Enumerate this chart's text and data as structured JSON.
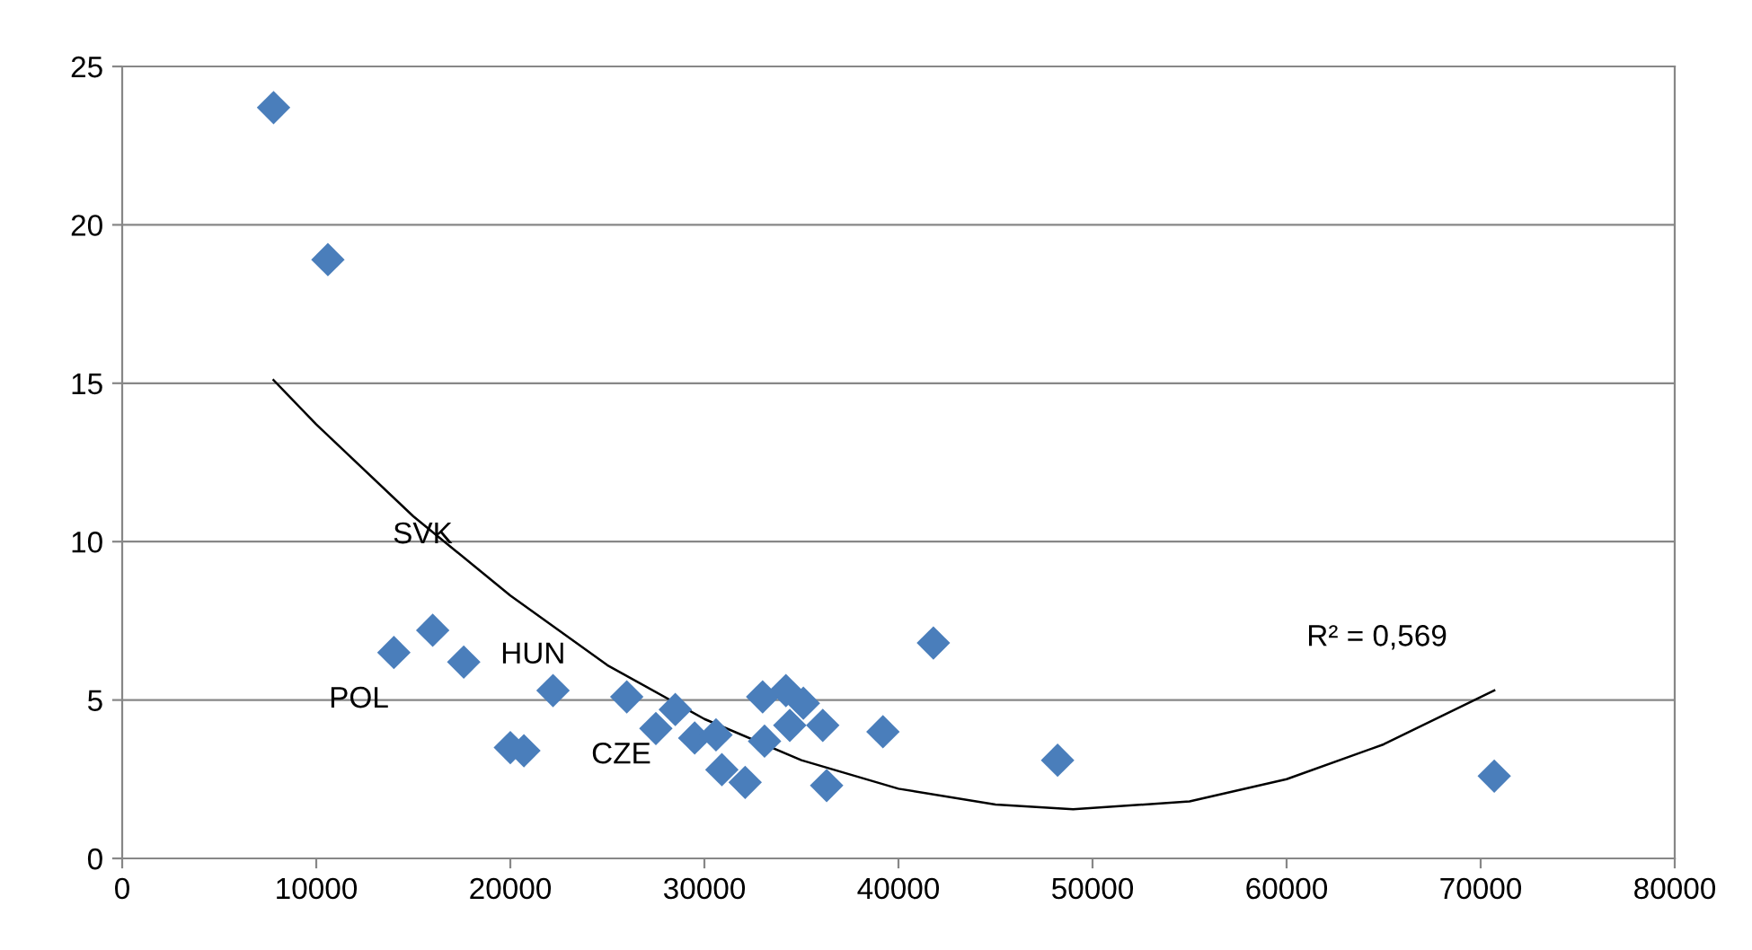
{
  "chart_data": {
    "type": "scatter",
    "grid": "y",
    "legend": false,
    "xlim": [
      0,
      80000
    ],
    "xticks": [
      0,
      10000,
      20000,
      30000,
      40000,
      50000,
      60000,
      70000,
      80000
    ],
    "ylim": [
      0,
      25
    ],
    "yticks": [
      0,
      5,
      10,
      15,
      20,
      25
    ],
    "series": [
      {
        "marker": "diamond",
        "color": "#4a7ebb",
        "x": [
          7800,
          10600,
          14000,
          16000,
          17600,
          20000,
          20700,
          22200,
          26000,
          27500,
          28500,
          29500,
          30600,
          30900,
          32100,
          33000,
          33100,
          34200,
          34400,
          35100,
          36100,
          36300,
          39200,
          41800,
          48200,
          70700
        ],
        "values": [
          23.7,
          18.9,
          6.5,
          7.2,
          6.2,
          3.5,
          3.4,
          5.3,
          5.1,
          4.1,
          4.7,
          3.8,
          3.9,
          2.8,
          2.4,
          5.1,
          3.7,
          5.3,
          4.2,
          4.9,
          4.2,
          2.3,
          4.0,
          6.8,
          3.1,
          2.6
        ]
      },
      {
        "type": "line",
        "color": "#000000",
        "line_style": "solid",
        "x": [
          7800,
          10000,
          15000,
          20000,
          25000,
          30000,
          35000,
          40000,
          45000,
          49000,
          55000,
          60000,
          65000,
          70700
        ],
        "values": [
          15.1,
          13.7,
          10.8,
          8.3,
          6.1,
          4.4,
          3.1,
          2.2,
          1.7,
          1.55,
          1.8,
          2.5,
          3.6,
          5.3
        ]
      }
    ],
    "annotations": [
      {
        "text": "POL",
        "x": 14000,
        "y": 6.5
      },
      {
        "text": "SVK",
        "x": 16000,
        "y": 7.2
      },
      {
        "text": "HUN",
        "x": 22200,
        "y": 5.3
      },
      {
        "text": "CZE",
        "x": 20700,
        "y": 3.4
      },
      {
        "text": "R² = 0,569",
        "x": 70700,
        "y": 5.3
      }
    ]
  }
}
